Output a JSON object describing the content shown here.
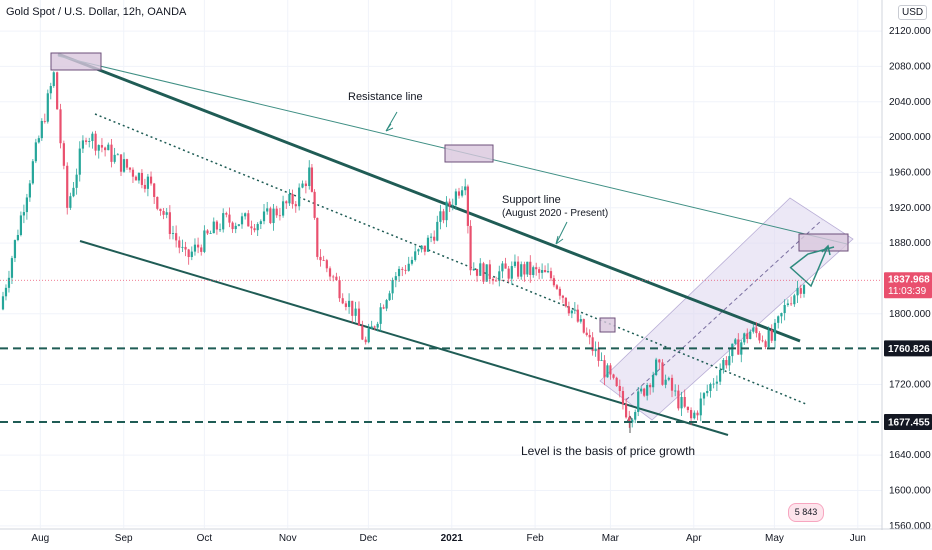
{
  "header": {
    "title": "Gold Spot / U.S. Dollar, 12h, OANDA",
    "currency": "USD"
  },
  "price_axis": {
    "ticks": [
      "2120.000",
      "2080.000",
      "2040.000",
      "2000.000",
      "1960.000",
      "1920.000",
      "1880.000",
      "1800.000",
      "1720.000",
      "1640.000",
      "1600.000",
      "1560.000"
    ],
    "current_price": "1837.968",
    "countdown": "11:03:39",
    "level_upper": "1760.826",
    "level_lower": "1677.455"
  },
  "time_axis": {
    "ticks": [
      "Aug",
      "Sep",
      "Oct",
      "Nov",
      "Dec",
      "2021",
      "Feb",
      "Mar",
      "Apr",
      "May",
      "Jun"
    ]
  },
  "annotations": {
    "resistance": "Resistance line",
    "support_line1": "Support line",
    "support_line2": "(August 2020 - Present)",
    "level_note": "Level is the basis of price growth"
  },
  "badge": {
    "text": "5 843"
  },
  "colors": {
    "up": "#26a69a",
    "down": "#e9506e",
    "trend": "#1f5c55",
    "channel": "#ddd6ee",
    "level_dash": "#1f5c55",
    "current_price_bg": "#e9506e"
  },
  "chart_data": {
    "type": "candlestick",
    "ylim": [
      1540,
      2130
    ],
    "x_range": [
      "2020-07-17",
      "2021-06-10"
    ],
    "close_path": [
      {
        "date": "2020-07-17",
        "price": 1805
      },
      {
        "date": "2020-07-27",
        "price": 1940
      },
      {
        "date": "2020-08-06",
        "price": 2070
      },
      {
        "date": "2020-08-11",
        "price": 1920
      },
      {
        "date": "2020-08-18",
        "price": 2005
      },
      {
        "date": "2020-08-31",
        "price": 1970
      },
      {
        "date": "2020-09-10",
        "price": 1950
      },
      {
        "date": "2020-09-24",
        "price": 1862
      },
      {
        "date": "2020-10-08",
        "price": 1905
      },
      {
        "date": "2020-10-22",
        "price": 1905
      },
      {
        "date": "2020-11-04",
        "price": 1930
      },
      {
        "date": "2020-11-09",
        "price": 1960
      },
      {
        "date": "2020-11-12",
        "price": 1870
      },
      {
        "date": "2020-11-25",
        "price": 1805
      },
      {
        "date": "2020-11-30",
        "price": 1765
      },
      {
        "date": "2020-12-10",
        "price": 1840
      },
      {
        "date": "2020-12-22",
        "price": 1875
      },
      {
        "date": "2021-01-06",
        "price": 1955
      },
      {
        "date": "2021-01-08",
        "price": 1855
      },
      {
        "date": "2021-01-14",
        "price": 1845
      },
      {
        "date": "2021-01-28",
        "price": 1850
      },
      {
        "date": "2021-02-08",
        "price": 1840
      },
      {
        "date": "2021-02-18",
        "price": 1785
      },
      {
        "date": "2021-03-01",
        "price": 1725
      },
      {
        "date": "2021-03-08",
        "price": 1685
      },
      {
        "date": "2021-03-18",
        "price": 1740
      },
      {
        "date": "2021-03-31",
        "price": 1680
      },
      {
        "date": "2021-04-12",
        "price": 1745
      },
      {
        "date": "2021-04-22",
        "price": 1780
      },
      {
        "date": "2021-04-30",
        "price": 1770
      },
      {
        "date": "2021-05-06",
        "price": 1815
      },
      {
        "date": "2021-05-12",
        "price": 1838
      }
    ],
    "horizontal_levels": [
      1760.826,
      1677.455
    ],
    "current_price": 1837.968
  }
}
